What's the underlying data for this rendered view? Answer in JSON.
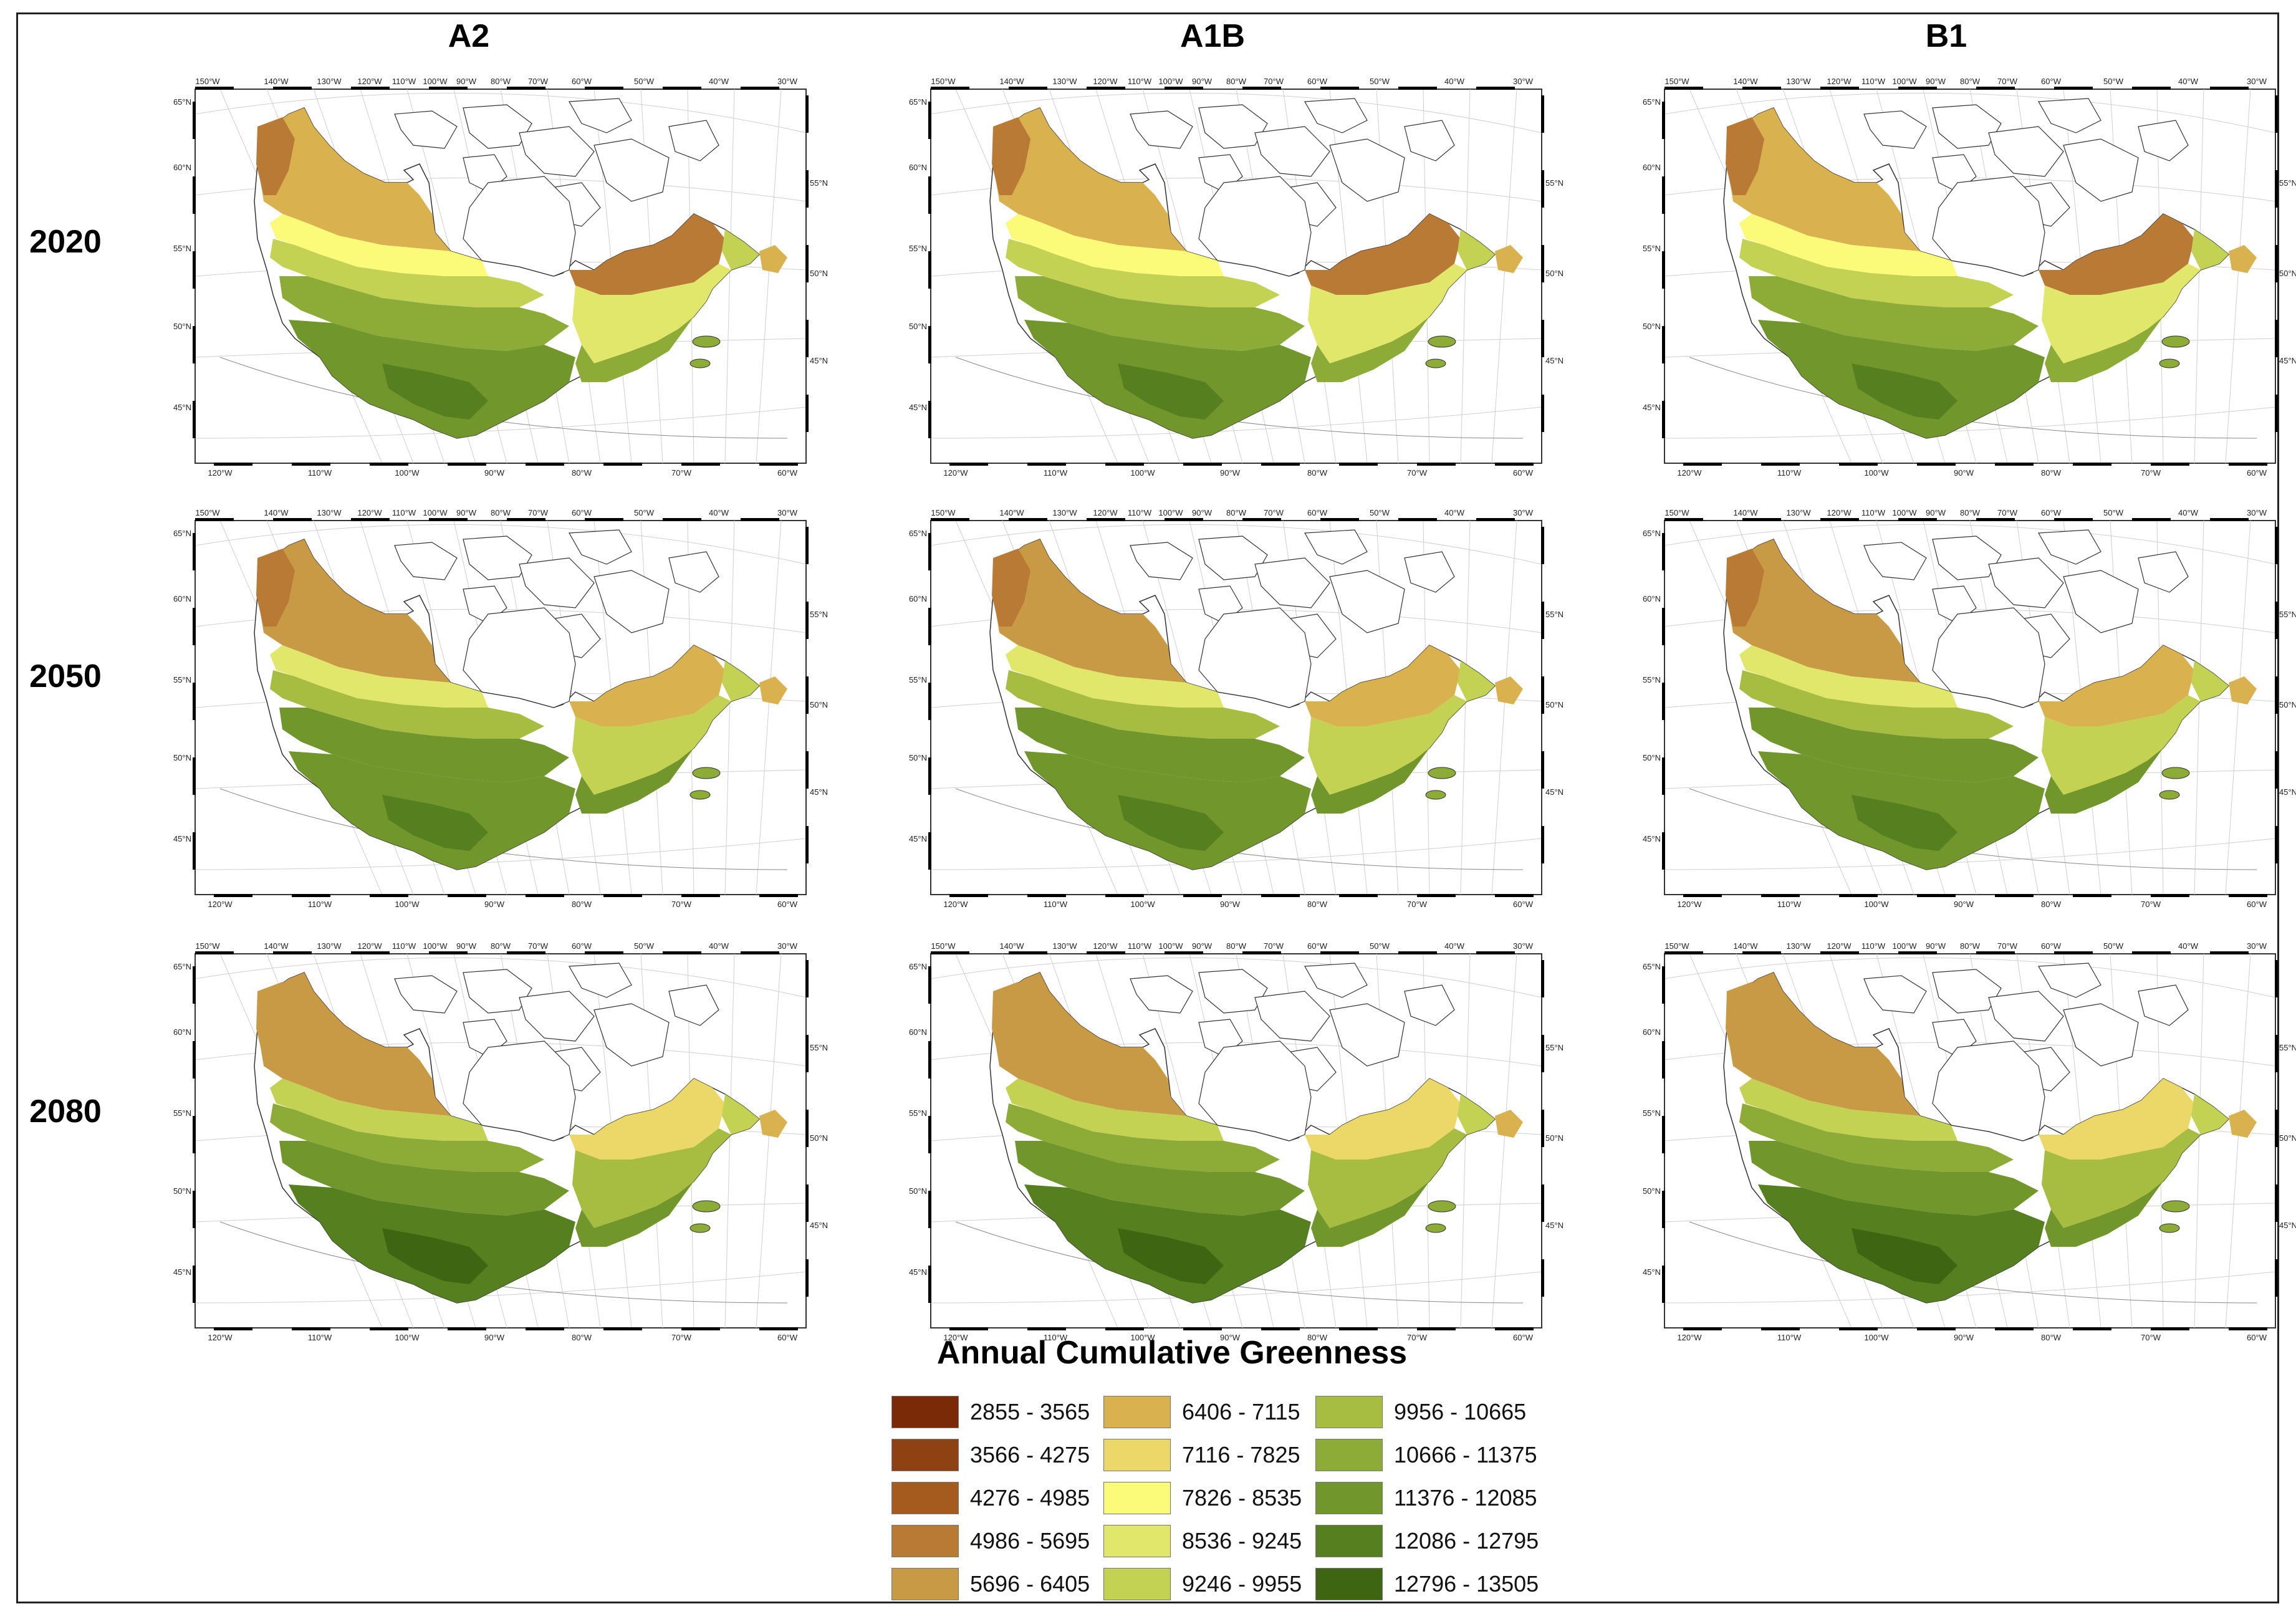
{
  "columns": [
    "A2",
    "A1B",
    "B1"
  ],
  "rows": [
    "2020",
    "2050",
    "2080"
  ],
  "map_axes": {
    "top_longitudes": [
      "150°W",
      "140°W",
      "130°W",
      "120°W",
      "110°W",
      "100°W",
      "90°W",
      "80°W",
      "70°W",
      "60°W",
      "50°W",
      "40°W",
      "30°W"
    ],
    "bottom_longitudes": [
      "120°W",
      "110°W",
      "100°W",
      "90°W",
      "80°W",
      "70°W",
      "60°W"
    ],
    "left_latitudes": [
      "65°N",
      "60°N",
      "55°N",
      "50°N",
      "45°N"
    ],
    "right_latitudes": [
      "55°N",
      "50°N",
      "45°N"
    ]
  },
  "legend": {
    "title": "Annual Cumulative Greenness",
    "classes": [
      {
        "label": "2855 - 3565",
        "color": "#7a2a06"
      },
      {
        "label": "3566 - 4275",
        "color": "#8e4213"
      },
      {
        "label": "4276 - 4985",
        "color": "#a65b1e"
      },
      {
        "label": "4986 - 5695",
        "color": "#b87a34"
      },
      {
        "label": "5696 - 6405",
        "color": "#c99a45"
      },
      {
        "label": "6406 - 7115",
        "color": "#d9b24f"
      },
      {
        "label": "7116 - 7825",
        "color": "#ecd769"
      },
      {
        "label": "7826 - 8535",
        "color": "#fbfb79"
      },
      {
        "label": "8536 - 9245",
        "color": "#e0e76a"
      },
      {
        "label": "9246 - 9955",
        "color": "#c3d253"
      },
      {
        "label": "9956 - 10665",
        "color": "#a7bd42"
      },
      {
        "label": "10666 - 11375",
        "color": "#8cab37"
      },
      {
        "label": "11376 - 12085",
        "color": "#71962b"
      },
      {
        "label": "12086 - 12795",
        "color": "#567f1f"
      },
      {
        "label": "12796 - 13505",
        "color": "#3e6612"
      }
    ]
  }
}
